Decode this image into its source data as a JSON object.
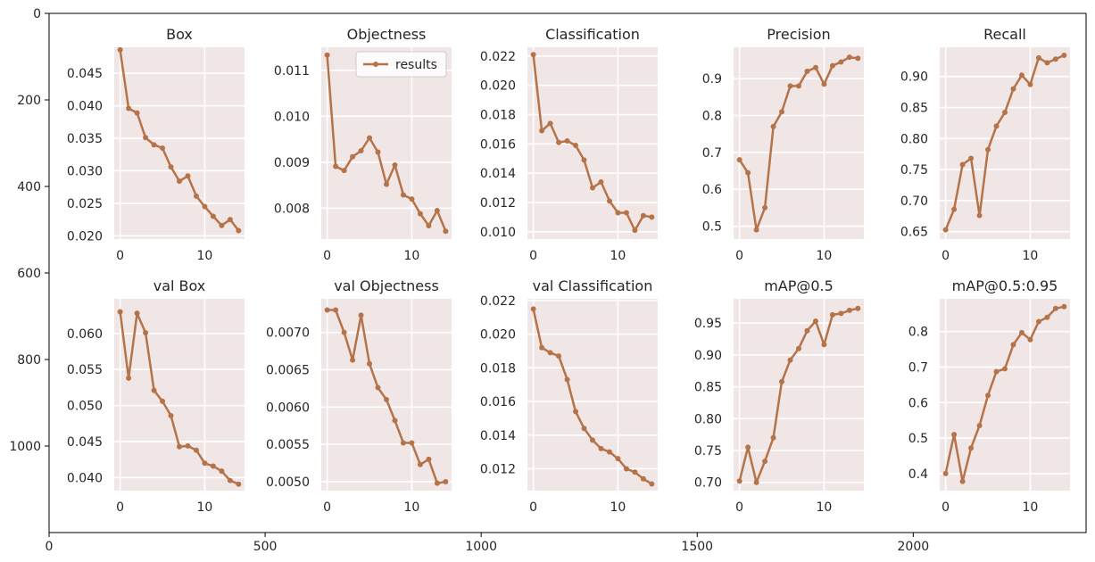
{
  "colors": {
    "panel_bg": "#f0e6e6",
    "grid": "#ffffff",
    "series": "#b5734a",
    "tick_text": "#262626",
    "frame": "#000000"
  },
  "outer_axes": {
    "x_ticks": [
      "0",
      "500",
      "1000",
      "1500",
      "2000"
    ],
    "y_ticks": [
      "0",
      "200",
      "400",
      "600",
      "800",
      "1000"
    ]
  },
  "legend": {
    "label": "results",
    "panel": "Objectness"
  },
  "chart_data": [
    {
      "type": "line",
      "title": "Box",
      "x": [
        0,
        1,
        2,
        3,
        4,
        5,
        6,
        7,
        8,
        9,
        10,
        11,
        12,
        13,
        14
      ],
      "values": [
        0.0486,
        0.0396,
        0.0389,
        0.0351,
        0.034,
        0.0335,
        0.0306,
        0.0284,
        0.0292,
        0.0261,
        0.0245,
        0.023,
        0.0216,
        0.0225,
        0.0208
      ],
      "ylim": [
        0.0195,
        0.049
      ],
      "y_ticks": [
        0.02,
        0.025,
        0.03,
        0.035,
        0.04,
        0.045
      ],
      "y_tick_labels": [
        "0.020",
        "0.025",
        "0.030",
        "0.035",
        "0.040",
        "0.045"
      ],
      "xlim": [
        -0.7,
        14.7
      ],
      "x_ticks": [
        0,
        10
      ],
      "x_tick_labels": [
        "0",
        "10"
      ]
    },
    {
      "type": "line",
      "title": "Objectness",
      "x": [
        0,
        1,
        2,
        3,
        4,
        5,
        6,
        7,
        8,
        9,
        10,
        11,
        12,
        13,
        14
      ],
      "values": [
        0.01133,
        0.00891,
        0.00882,
        0.00912,
        0.00925,
        0.00953,
        0.00922,
        0.00852,
        0.00894,
        0.00829,
        0.0082,
        0.00788,
        0.00762,
        0.00795,
        0.0075
      ],
      "ylim": [
        0.00733,
        0.0115
      ],
      "y_ticks": [
        0.008,
        0.009,
        0.01,
        0.011
      ],
      "y_tick_labels": [
        "0.008",
        "0.009",
        "0.010",
        "0.011"
      ],
      "xlim": [
        -0.7,
        14.7
      ],
      "x_ticks": [
        0,
        10
      ],
      "x_tick_labels": [
        "0",
        "10"
      ]
    },
    {
      "type": "line",
      "title": "Classification",
      "x": [
        0,
        1,
        2,
        3,
        4,
        5,
        6,
        7,
        8,
        9,
        10,
        11,
        12,
        13,
        14
      ],
      "values": [
        0.0221,
        0.0169,
        0.0174,
        0.0161,
        0.0162,
        0.0159,
        0.0149,
        0.013,
        0.0134,
        0.0121,
        0.0113,
        0.0113,
        0.0101,
        0.0111,
        0.011
      ],
      "ylim": [
        0.0095,
        0.0226
      ],
      "y_ticks": [
        0.01,
        0.012,
        0.014,
        0.016,
        0.018,
        0.02,
        0.022
      ],
      "y_tick_labels": [
        "0.010",
        "0.012",
        "0.014",
        "0.016",
        "0.018",
        "0.020",
        "0.022"
      ],
      "xlim": [
        -0.7,
        14.7
      ],
      "x_ticks": [
        0,
        10
      ],
      "x_tick_labels": [
        "0",
        "10"
      ]
    },
    {
      "type": "line",
      "title": "Precision",
      "x": [
        0,
        1,
        2,
        3,
        4,
        5,
        6,
        7,
        8,
        9,
        10,
        11,
        12,
        13,
        14
      ],
      "values": [
        0.68,
        0.645,
        0.49,
        0.55,
        0.77,
        0.81,
        0.88,
        0.88,
        0.92,
        0.93,
        0.885,
        0.935,
        0.945,
        0.958,
        0.955
      ],
      "ylim": [
        0.465,
        0.985
      ],
      "y_ticks": [
        0.5,
        0.6,
        0.7,
        0.8,
        0.9
      ],
      "y_tick_labels": [
        "0.5",
        "0.6",
        "0.7",
        "0.8",
        "0.9"
      ],
      "xlim": [
        -0.7,
        14.7
      ],
      "x_ticks": [
        0,
        10
      ],
      "x_tick_labels": [
        "0",
        "10"
      ]
    },
    {
      "type": "line",
      "title": "Recall",
      "x": [
        0,
        1,
        2,
        3,
        4,
        5,
        6,
        7,
        8,
        9,
        10,
        11,
        12,
        13,
        14
      ],
      "values": [
        0.653,
        0.686,
        0.758,
        0.768,
        0.676,
        0.782,
        0.82,
        0.842,
        0.88,
        0.902,
        0.887,
        0.93,
        0.922,
        0.928,
        0.934
      ],
      "ylim": [
        0.638,
        0.947
      ],
      "y_ticks": [
        0.65,
        0.7,
        0.75,
        0.8,
        0.85,
        0.9
      ],
      "y_tick_labels": [
        "0.65",
        "0.70",
        "0.75",
        "0.80",
        "0.85",
        "0.90"
      ],
      "xlim": [
        -0.7,
        14.7
      ],
      "x_ticks": [
        0,
        10
      ],
      "x_tick_labels": [
        "0",
        "10"
      ]
    },
    {
      "type": "line",
      "title": "val Box",
      "x": [
        0,
        1,
        2,
        3,
        4,
        5,
        6,
        7,
        8,
        9,
        10,
        11,
        12,
        13,
        14
      ],
      "values": [
        0.063,
        0.0538,
        0.0628,
        0.0601,
        0.0521,
        0.0506,
        0.0486,
        0.0443,
        0.0444,
        0.0438,
        0.042,
        0.0416,
        0.0409,
        0.0396,
        0.0391
      ],
      "ylim": [
        0.0382,
        0.0648
      ],
      "y_ticks": [
        0.04,
        0.045,
        0.05,
        0.055,
        0.06
      ],
      "y_tick_labels": [
        "0.040",
        "0.045",
        "0.050",
        "0.055",
        "0.060"
      ],
      "xlim": [
        -0.7,
        14.7
      ],
      "x_ticks": [
        0,
        10
      ],
      "x_tick_labels": [
        "0",
        "10"
      ]
    },
    {
      "type": "line",
      "title": "val Objectness",
      "x": [
        0,
        1,
        2,
        3,
        4,
        5,
        6,
        7,
        8,
        9,
        10,
        11,
        12,
        13,
        14
      ],
      "values": [
        0.0073,
        0.0073,
        0.007,
        0.00663,
        0.00723,
        0.00658,
        0.00626,
        0.0061,
        0.00582,
        0.00552,
        0.00552,
        0.00523,
        0.0053,
        0.00498,
        0.005
      ],
      "ylim": [
        0.00488,
        0.00745
      ],
      "y_ticks": [
        0.005,
        0.0055,
        0.006,
        0.0065,
        0.007
      ],
      "y_tick_labels": [
        "0.0050",
        "0.0055",
        "0.0060",
        "0.0065",
        "0.0070"
      ],
      "xlim": [
        -0.7,
        14.7
      ],
      "x_ticks": [
        0,
        10
      ],
      "x_tick_labels": [
        "0",
        "10"
      ]
    },
    {
      "type": "line",
      "title": "val Classification",
      "x": [
        0,
        1,
        2,
        3,
        4,
        5,
        6,
        7,
        8,
        9,
        10,
        11,
        12,
        13,
        14
      ],
      "values": [
        0.0215,
        0.0192,
        0.0189,
        0.0187,
        0.0173,
        0.0154,
        0.0144,
        0.0137,
        0.0132,
        0.013,
        0.0126,
        0.012,
        0.0118,
        0.0114,
        0.0111
      ],
      "ylim": [
        0.0107,
        0.0221
      ],
      "y_ticks": [
        0.012,
        0.014,
        0.016,
        0.018,
        0.02,
        0.022
      ],
      "y_tick_labels": [
        "0.012",
        "0.014",
        "0.016",
        "0.018",
        "0.020",
        "0.022"
      ],
      "xlim": [
        -0.7,
        14.7
      ],
      "x_ticks": [
        0,
        10
      ],
      "x_tick_labels": [
        "0",
        "10"
      ]
    },
    {
      "type": "line",
      "title": "mAP@0.5",
      "x": [
        0,
        1,
        2,
        3,
        4,
        5,
        6,
        7,
        8,
        9,
        10,
        11,
        12,
        13,
        14
      ],
      "values": [
        0.702,
        0.755,
        0.7,
        0.733,
        0.77,
        0.858,
        0.892,
        0.91,
        0.938,
        0.953,
        0.916,
        0.963,
        0.965,
        0.97,
        0.973
      ],
      "ylim": [
        0.687,
        0.988
      ],
      "y_ticks": [
        0.7,
        0.75,
        0.8,
        0.85,
        0.9,
        0.95
      ],
      "y_tick_labels": [
        "0.70",
        "0.75",
        "0.80",
        "0.85",
        "0.90",
        "0.95"
      ],
      "xlim": [
        -0.7,
        14.7
      ],
      "x_ticks": [
        0,
        10
      ],
      "x_tick_labels": [
        "0",
        "10"
      ]
    },
    {
      "type": "line",
      "title": "mAP@0.5:0.95",
      "x": [
        0,
        1,
        2,
        3,
        4,
        5,
        6,
        7,
        8,
        9,
        10,
        11,
        12,
        13,
        14
      ],
      "values": [
        0.4,
        0.51,
        0.378,
        0.472,
        0.535,
        0.62,
        0.687,
        0.695,
        0.763,
        0.797,
        0.777,
        0.828,
        0.84,
        0.865,
        0.87
      ],
      "ylim": [
        0.352,
        0.892
      ],
      "y_ticks": [
        0.4,
        0.5,
        0.6,
        0.7,
        0.8
      ],
      "y_tick_labels": [
        "0.4",
        "0.5",
        "0.6",
        "0.7",
        "0.8"
      ],
      "xlim": [
        -0.7,
        14.7
      ],
      "x_ticks": [
        0,
        10
      ],
      "x_tick_labels": [
        "0",
        "10"
      ]
    }
  ]
}
